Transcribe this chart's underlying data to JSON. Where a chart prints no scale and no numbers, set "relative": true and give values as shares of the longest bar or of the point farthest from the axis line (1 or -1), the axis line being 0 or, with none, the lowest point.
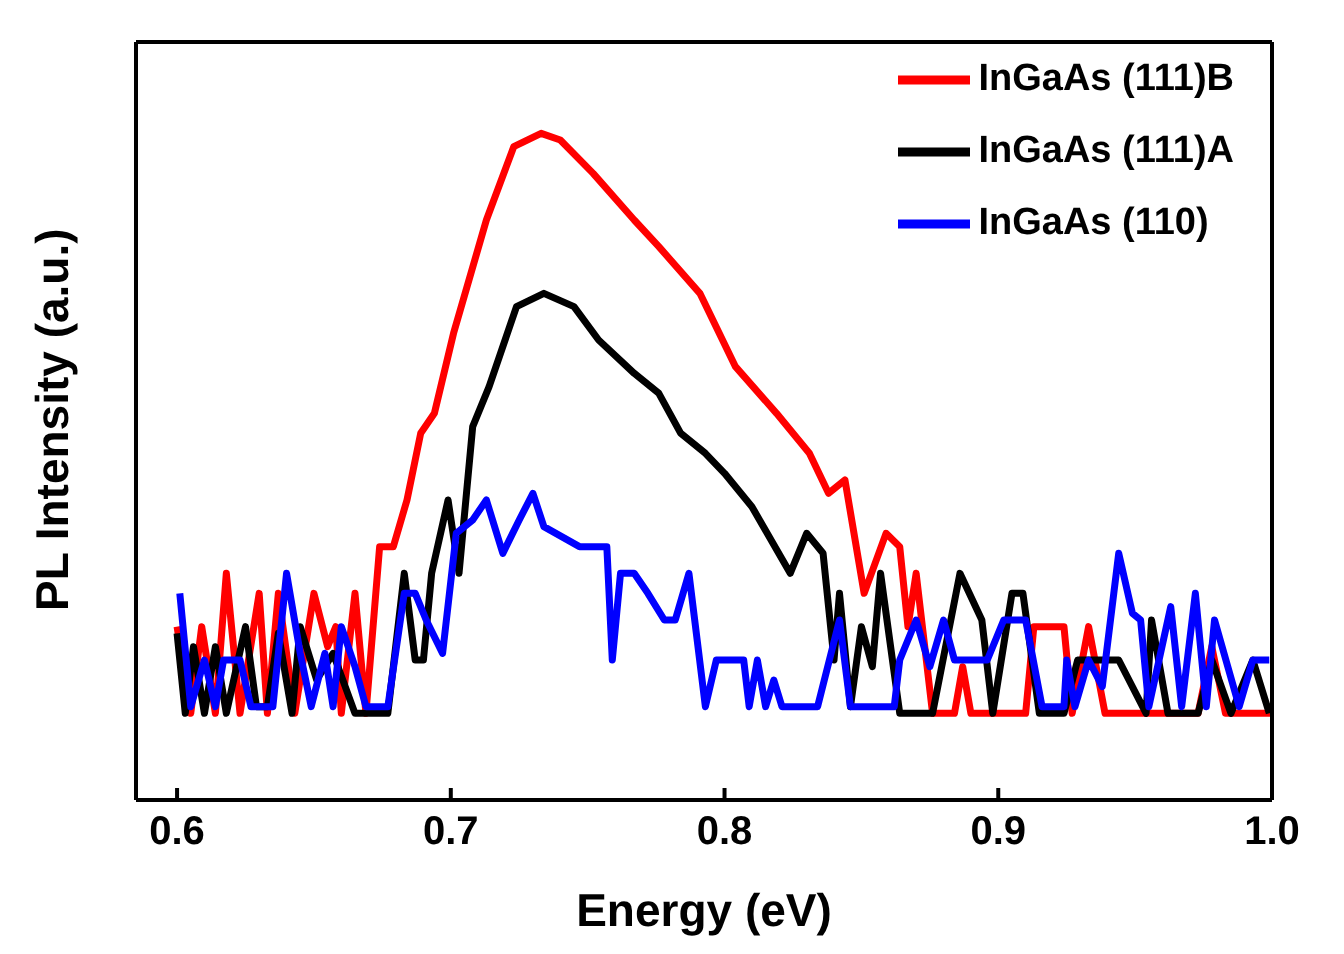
{
  "chart_data": {
    "type": "line",
    "relative": true,
    "xlabel": "Energy (eV)",
    "ylabel": "PL Intensity (a.u.)",
    "xlim": [
      0.585,
      1.0
    ],
    "xticks": [
      0.6,
      0.7,
      0.8,
      0.9,
      {
        "value": 1,
        "label": "1.0"
      }
    ],
    "legend": "top right",
    "marker": "none",
    "line_style": "solid",
    "grid": false,
    "series": [
      {
        "name": "InGaAs (111)B",
        "color": "#ff0000",
        "x": [
          0.6,
          0.605,
          0.609,
          0.614,
          0.618,
          0.623,
          0.63,
          0.633,
          0.637,
          0.643,
          0.65,
          0.655,
          0.658,
          0.66,
          0.665,
          0.669,
          0.674,
          0.679,
          0.684,
          0.689,
          0.694,
          0.701,
          0.713,
          0.723,
          0.733,
          0.74,
          0.752,
          0.767,
          0.776,
          0.791,
          0.804,
          0.819,
          0.831,
          0.838,
          0.844,
          0.851,
          0.859,
          0.864,
          0.867,
          0.87,
          0.876,
          0.884,
          0.887,
          0.89,
          0.91,
          0.913,
          0.924,
          0.927,
          0.933,
          0.939,
          0.973,
          0.978,
          0.983,
          1.0
        ],
        "values": [
          0.26,
          0.13,
          0.26,
          0.13,
          0.34,
          0.13,
          0.31,
          0.13,
          0.31,
          0.13,
          0.31,
          0.23,
          0.26,
          0.13,
          0.31,
          0.13,
          0.38,
          0.38,
          0.45,
          0.55,
          0.58,
          0.7,
          0.87,
          0.98,
          1.0,
          0.99,
          0.94,
          0.87,
          0.83,
          0.76,
          0.65,
          0.58,
          0.52,
          0.46,
          0.48,
          0.31,
          0.4,
          0.38,
          0.26,
          0.34,
          0.13,
          0.13,
          0.2,
          0.13,
          0.13,
          0.26,
          0.26,
          0.13,
          0.26,
          0.13,
          0.13,
          0.23,
          0.13,
          0.13
        ]
      },
      {
        "name": "InGaAs (111)A",
        "color": "#000000",
        "x": [
          0.6,
          0.603,
          0.606,
          0.61,
          0.614,
          0.618,
          0.625,
          0.629,
          0.633,
          0.637,
          0.642,
          0.645,
          0.651,
          0.657,
          0.665,
          0.677,
          0.683,
          0.687,
          0.69,
          0.693,
          0.699,
          0.703,
          0.708,
          0.714,
          0.724,
          0.734,
          0.745,
          0.754,
          0.767,
          0.776,
          0.784,
          0.793,
          0.8,
          0.81,
          0.824,
          0.83,
          0.836,
          0.84,
          0.842,
          0.846,
          0.85,
          0.854,
          0.857,
          0.864,
          0.876,
          0.886,
          0.894,
          0.898,
          0.905,
          0.909,
          0.915,
          0.924,
          0.929,
          0.944,
          0.954,
          0.956,
          0.962,
          0.973,
          0.978,
          0.985,
          0.993,
          0.999
        ],
        "values": [
          0.25,
          0.13,
          0.23,
          0.13,
          0.23,
          0.13,
          0.26,
          0.14,
          0.14,
          0.25,
          0.13,
          0.26,
          0.18,
          0.22,
          0.13,
          0.13,
          0.34,
          0.21,
          0.21,
          0.34,
          0.45,
          0.34,
          0.56,
          0.62,
          0.74,
          0.76,
          0.74,
          0.69,
          0.64,
          0.61,
          0.55,
          0.52,
          0.49,
          0.44,
          0.34,
          0.4,
          0.37,
          0.21,
          0.31,
          0.14,
          0.26,
          0.2,
          0.34,
          0.13,
          0.13,
          0.34,
          0.27,
          0.13,
          0.31,
          0.31,
          0.13,
          0.13,
          0.21,
          0.21,
          0.13,
          0.27,
          0.13,
          0.13,
          0.21,
          0.13,
          0.21,
          0.13
        ]
      },
      {
        "name": "InGaAs (110)",
        "color": "#0000ff",
        "x": [
          0.601,
          0.605,
          0.61,
          0.614,
          0.617,
          0.623,
          0.627,
          0.635,
          0.64,
          0.645,
          0.649,
          0.654,
          0.657,
          0.66,
          0.665,
          0.669,
          0.677,
          0.683,
          0.687,
          0.691,
          0.697,
          0.702,
          0.708,
          0.713,
          0.719,
          0.725,
          0.73,
          0.734,
          0.747,
          0.757,
          0.759,
          0.762,
          0.767,
          0.772,
          0.778,
          0.782,
          0.787,
          0.793,
          0.797,
          0.807,
          0.809,
          0.812,
          0.815,
          0.818,
          0.821,
          0.834,
          0.842,
          0.846,
          0.851,
          0.862,
          0.864,
          0.87,
          0.875,
          0.88,
          0.884,
          0.896,
          0.902,
          0.91,
          0.916,
          0.924,
          0.925,
          0.928,
          0.933,
          0.938,
          0.944,
          0.949,
          0.952,
          0.955,
          0.963,
          0.967,
          0.972,
          0.976,
          0.979,
          0.988,
          0.993,
          0.999
        ],
        "values": [
          0.31,
          0.14,
          0.21,
          0.14,
          0.21,
          0.21,
          0.14,
          0.14,
          0.34,
          0.22,
          0.14,
          0.22,
          0.14,
          0.26,
          0.2,
          0.14,
          0.14,
          0.31,
          0.31,
          0.27,
          0.22,
          0.4,
          0.42,
          0.45,
          0.37,
          0.42,
          0.46,
          0.41,
          0.38,
          0.38,
          0.21,
          0.34,
          0.34,
          0.31,
          0.27,
          0.27,
          0.34,
          0.14,
          0.21,
          0.21,
          0.14,
          0.21,
          0.14,
          0.18,
          0.14,
          0.14,
          0.27,
          0.14,
          0.14,
          0.14,
          0.21,
          0.27,
          0.2,
          0.27,
          0.21,
          0.21,
          0.27,
          0.27,
          0.14,
          0.14,
          0.21,
          0.14,
          0.21,
          0.17,
          0.37,
          0.28,
          0.27,
          0.14,
          0.29,
          0.14,
          0.31,
          0.14,
          0.27,
          0.14,
          0.21,
          0.21
        ]
      }
    ]
  }
}
